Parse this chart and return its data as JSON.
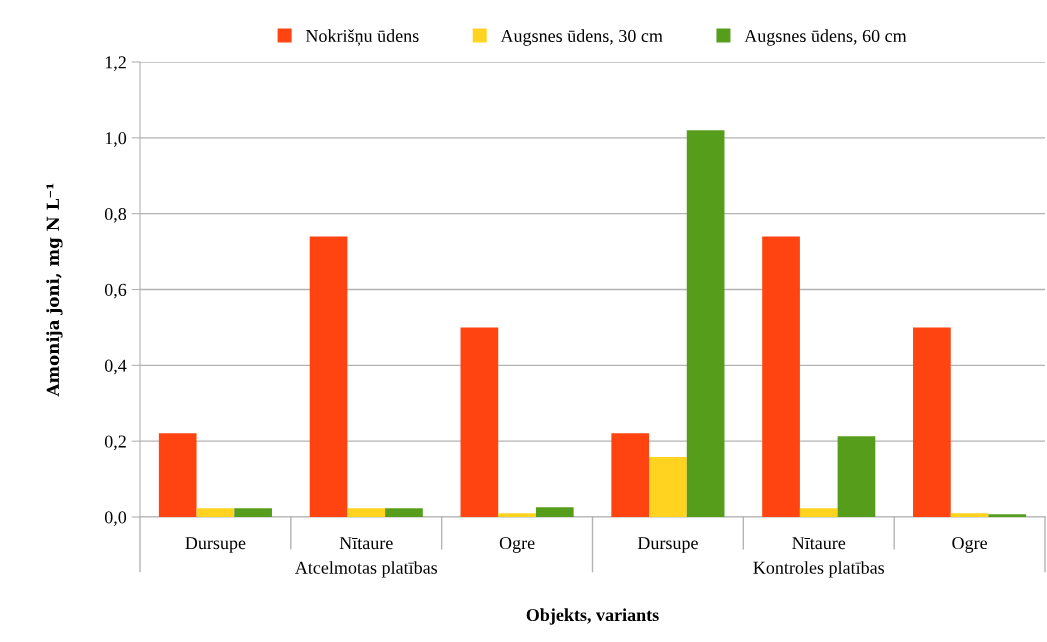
{
  "chart_data": {
    "type": "bar",
    "categories": [
      "Dursupe",
      "Nītaure",
      "Ogre",
      "Dursupe",
      "Nītaure",
      "Ogre"
    ],
    "series": [
      {
        "name": "Nokrišņu ūdens",
        "color": "#ff4411",
        "values": [
          0.221,
          0.74,
          0.5,
          0.221,
          0.74,
          0.5
        ]
      },
      {
        "name": "Augsnes ūdens, 30 cm",
        "color": "#ffd320",
        "values": [
          0.023,
          0.023,
          0.01,
          0.158,
          0.023,
          0.01
        ]
      },
      {
        "name": "Augsnes ūdens, 60 cm",
        "color": "#579d1c",
        "values": [
          0.023,
          0.023,
          0.026,
          1.02,
          0.213,
          0.007
        ]
      }
    ],
    "ylim": [
      0,
      1.2
    ],
    "yticks": [
      {
        "value": 0,
        "label": "0,0"
      },
      {
        "value": 0.2,
        "label": "0,2"
      },
      {
        "value": 0.4,
        "label": "0,4"
      },
      {
        "value": 0.6,
        "label": "0,6"
      },
      {
        "value": 0.8,
        "label": "0,8"
      },
      {
        "value": 1.0,
        "label": "1,0"
      },
      {
        "value": 1.2,
        "label": "1,2"
      }
    ],
    "xlabel": "Objekts, variants",
    "ylabel": "Amonija joni, mg N L⁻¹",
    "annotations": [
      "Atcelmotas platības",
      "Kontroles platības"
    ],
    "grid": "y",
    "legend": "top"
  }
}
